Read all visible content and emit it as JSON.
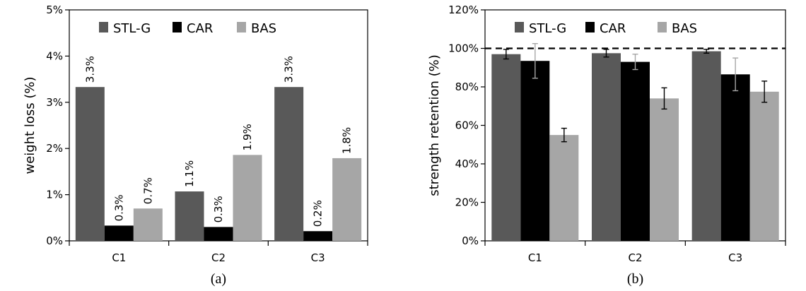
{
  "chart_data": [
    {
      "type": "bar",
      "caption": "(a)",
      "categories": [
        "C1",
        "C2",
        "C3"
      ],
      "ylabel": "weight loss (%)",
      "xlabel": "",
      "ylim": [
        0,
        5
      ],
      "y_ticks": [
        "0%",
        "1%",
        "2%",
        "3%",
        "4%",
        "5%"
      ],
      "tick_values": [
        0,
        1,
        2,
        3,
        4,
        5
      ],
      "legend_position": "top-left",
      "grid": false,
      "series": [
        {
          "name": "STL-G",
          "color": "#595959",
          "values": [
            3.33,
            1.07,
            3.33
          ],
          "labels": [
            "3.3%",
            "1.1%",
            "3.3%"
          ]
        },
        {
          "name": "CAR",
          "color": "#000000",
          "values": [
            0.33,
            0.3,
            0.21
          ],
          "labels": [
            "0.3%",
            "0.3%",
            "0.2%"
          ]
        },
        {
          "name": "BAS",
          "color": "#a6a6a6",
          "values": [
            0.7,
            1.86,
            1.79
          ],
          "labels": [
            "0.7%",
            "1.9%",
            "1.8%"
          ]
        }
      ]
    },
    {
      "type": "bar",
      "caption": "(b)",
      "categories": [
        "C1",
        "C2",
        "C3"
      ],
      "ylabel": "strength retention (%)",
      "xlabel": "",
      "ylim": [
        0,
        120
      ],
      "y_ticks": [
        "0%",
        "20%",
        "40%",
        "60%",
        "80%",
        "100%",
        "120%"
      ],
      "tick_values": [
        0,
        20,
        40,
        60,
        80,
        100,
        120
      ],
      "reference_line": 100,
      "legend_position": "top-left",
      "grid": false,
      "series": [
        {
          "name": "STL-G",
          "color": "#595959",
          "values": [
            97,
            97.5,
            98.5
          ],
          "errors": [
            2.5,
            2,
            1
          ]
        },
        {
          "name": "CAR",
          "color": "#000000",
          "values": [
            93.5,
            93,
            86.5
          ],
          "errors": [
            9,
            4,
            8.5
          ]
        },
        {
          "name": "BAS",
          "color": "#a6a6a6",
          "values": [
            55,
            74,
            77.5
          ],
          "errors": [
            3.5,
            5.5,
            5.5
          ]
        }
      ]
    }
  ]
}
